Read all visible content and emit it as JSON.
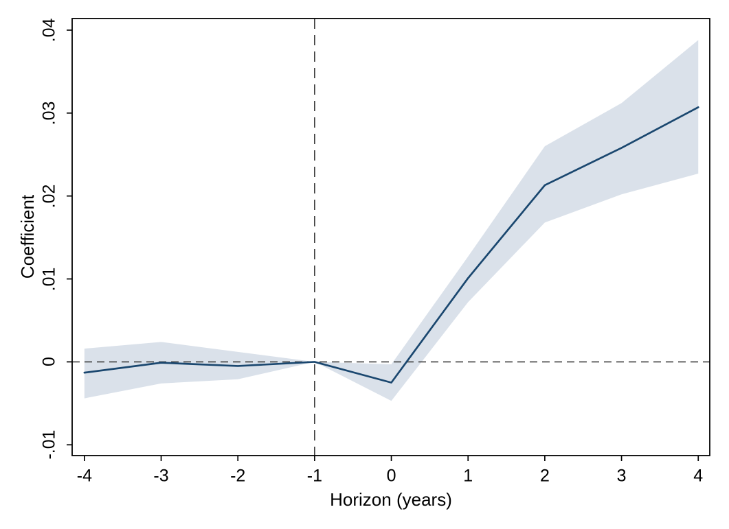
{
  "chart_data": {
    "type": "line",
    "title": "",
    "xlabel": "Horizon (years)",
    "ylabel": "Coefficient",
    "x": [
      -4,
      -3,
      -2,
      -1,
      0,
      1,
      2,
      3,
      4
    ],
    "series": [
      {
        "name": "coefficient",
        "values": [
          -0.0013,
          -0.0001,
          -0.0005,
          0,
          -0.0025,
          0.0101,
          0.0213,
          0.0258,
          0.0307
        ]
      },
      {
        "name": "ci_lower",
        "values": [
          -0.0044,
          -0.0026,
          -0.0021,
          0,
          -0.0047,
          0.0072,
          0.0168,
          0.0202,
          0.0227
        ]
      },
      {
        "name": "ci_upper",
        "values": [
          0.0016,
          0.0024,
          0.0012,
          0,
          -0.0003,
          0.0127,
          0.026,
          0.0312,
          0.0388
        ]
      }
    ],
    "x_ticks": {
      "values": [
        -4,
        -3,
        -2,
        -1,
        0,
        1,
        2,
        3,
        4
      ],
      "labels": [
        "-4",
        "-3",
        "-2",
        "-1",
        "0",
        "1",
        "2",
        "3",
        "4"
      ]
    },
    "y_ticks": {
      "values": [
        0.04,
        0.03,
        0.02,
        0.01,
        0,
        -0.01
      ],
      "labels": [
        ".04",
        ".03",
        ".02",
        ".01",
        "0",
        "-.01"
      ]
    },
    "xlim": [
      -4.16,
      4.15
    ],
    "ylim": [
      -0.0113,
      0.0414
    ],
    "reference_lines": {
      "horizontal_y": 0,
      "vertical_x": -1
    },
    "grid": false,
    "legend": "none",
    "colors": {
      "line": "#1a476f",
      "band": "#dae1ea",
      "dashed": "#3d3d3d",
      "axis": "#000000",
      "background": "#ffffff"
    }
  }
}
